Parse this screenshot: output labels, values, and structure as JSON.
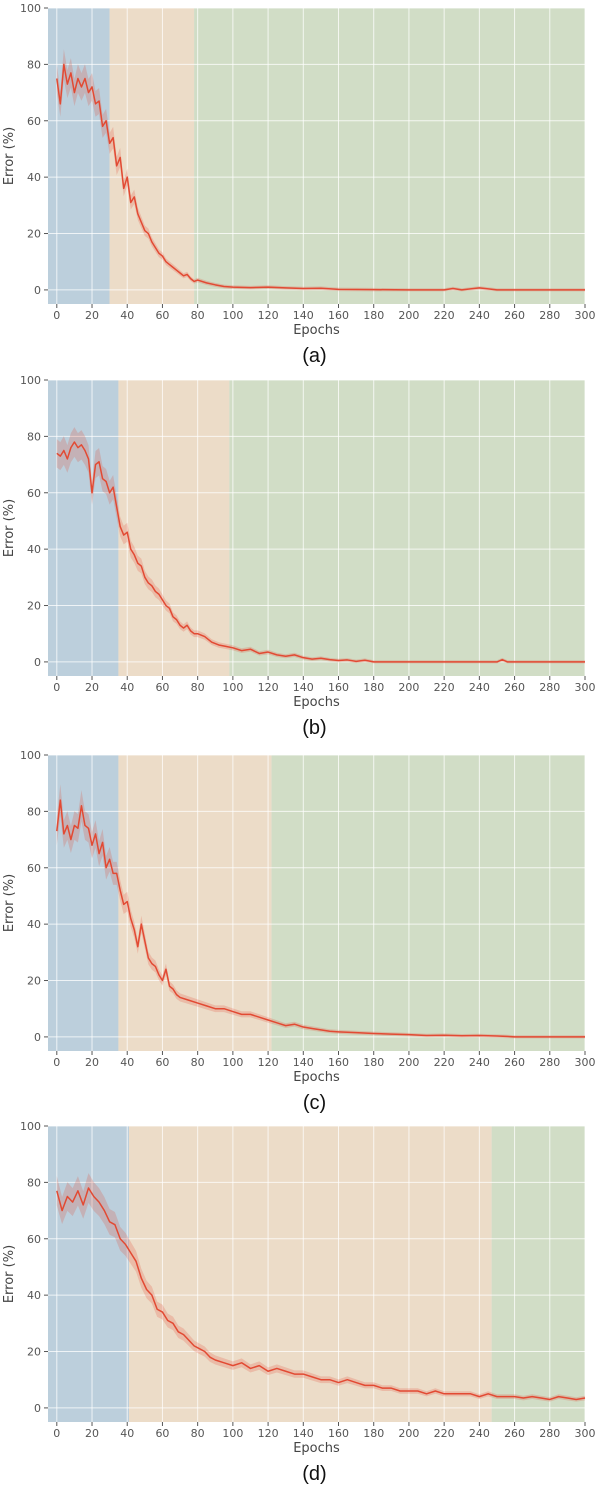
{
  "chart_data": [
    {
      "type": "line",
      "caption": "(a)",
      "xlabel": "Epochs",
      "ylabel": "Error (%)",
      "xlim": [
        -5,
        300
      ],
      "ylim": [
        -5,
        100
      ],
      "xticks": [
        "0",
        "20",
        "40",
        "60",
        "80",
        "100",
        "120",
        "140",
        "160",
        "180",
        "200",
        "220",
        "240",
        "260",
        "280",
        "300"
      ],
      "yticks": [
        "0",
        "20",
        "40",
        "60",
        "80",
        "100"
      ],
      "grid": true,
      "regions": [
        {
          "start": -5,
          "end": 30,
          "color": "#bccfdc"
        },
        {
          "start": 30,
          "end": 78,
          "color": "#ecdcc8"
        },
        {
          "start": 78,
          "end": 300,
          "color": "#d1ddc6"
        }
      ],
      "series": [
        {
          "color": "#e24a33",
          "x": [
            0,
            2,
            4,
            6,
            8,
            10,
            12,
            14,
            16,
            18,
            20,
            22,
            24,
            26,
            28,
            30,
            32,
            34,
            36,
            38,
            40,
            42,
            44,
            46,
            48,
            50,
            52,
            54,
            56,
            58,
            60,
            62,
            64,
            66,
            68,
            70,
            72,
            74,
            76,
            78,
            80,
            85,
            90,
            95,
            100,
            110,
            120,
            130,
            140,
            150,
            160,
            180,
            200,
            220,
            225,
            230,
            240,
            250,
            260,
            280,
            300
          ],
          "y": [
            75,
            66,
            80,
            73,
            77,
            70,
            75,
            72,
            75,
            70,
            72,
            66,
            67,
            58,
            60,
            52,
            54,
            44,
            47,
            36,
            40,
            31,
            33,
            27,
            24,
            21,
            20,
            17,
            15,
            13,
            12,
            10,
            9,
            8,
            7,
            6,
            5,
            5.5,
            4,
            3,
            3.5,
            2.5,
            1.8,
            1.2,
            1,
            0.8,
            1,
            0.7,
            0.5,
            0.6,
            0.2,
            0.1,
            0,
            0,
            0.5,
            0,
            0.7,
            0,
            0,
            0,
            0
          ]
        }
      ]
    },
    {
      "type": "line",
      "caption": "(b)",
      "xlabel": "Epochs",
      "ylabel": "Error (%)",
      "xlim": [
        -5,
        300
      ],
      "ylim": [
        -5,
        100
      ],
      "xticks": [
        "0",
        "20",
        "40",
        "60",
        "80",
        "100",
        "120",
        "140",
        "160",
        "180",
        "200",
        "220",
        "240",
        "260",
        "280",
        "300"
      ],
      "yticks": [
        "0",
        "20",
        "40",
        "60",
        "80",
        "100"
      ],
      "grid": true,
      "regions": [
        {
          "start": -5,
          "end": 35,
          "color": "#bccfdc"
        },
        {
          "start": 35,
          "end": 98,
          "color": "#ecdcc8"
        },
        {
          "start": 98,
          "end": 300,
          "color": "#d1ddc6"
        }
      ],
      "series": [
        {
          "color": "#e24a33",
          "x": [
            0,
            2,
            4,
            6,
            8,
            10,
            12,
            14,
            16,
            18,
            20,
            22,
            24,
            26,
            28,
            30,
            32,
            34,
            36,
            38,
            40,
            42,
            44,
            46,
            48,
            50,
            52,
            54,
            56,
            58,
            60,
            62,
            64,
            66,
            68,
            70,
            72,
            74,
            76,
            78,
            80,
            84,
            88,
            92,
            96,
            100,
            105,
            110,
            115,
            120,
            125,
            130,
            135,
            140,
            145,
            150,
            155,
            160,
            165,
            170,
            175,
            180,
            200,
            250,
            253,
            256,
            280,
            300
          ],
          "y": [
            74,
            73,
            75,
            72,
            76,
            78,
            76,
            77,
            75,
            72,
            60,
            70,
            71,
            65,
            64,
            60,
            62,
            55,
            48,
            45,
            46,
            40,
            38,
            35,
            34,
            30,
            28,
            27,
            25,
            24,
            22,
            20,
            19,
            16,
            15,
            13,
            12,
            13,
            11,
            10,
            10,
            9,
            7,
            6,
            5.5,
            5,
            4,
            4.5,
            3,
            3.5,
            2.5,
            2,
            2.5,
            1.5,
            1,
            1.3,
            0.8,
            0.5,
            0.7,
            0.2,
            0.6,
            0,
            0,
            0,
            0.8,
            0,
            0,
            0
          ]
        }
      ]
    },
    {
      "type": "line",
      "caption": "(c)",
      "xlabel": "Epochs",
      "ylabel": "Error (%)",
      "xlim": [
        -5,
        300
      ],
      "ylim": [
        -5,
        100
      ],
      "xticks": [
        "0",
        "20",
        "40",
        "60",
        "80",
        "100",
        "120",
        "140",
        "160",
        "180",
        "200",
        "220",
        "240",
        "260",
        "280",
        "300"
      ],
      "yticks": [
        "0",
        "20",
        "40",
        "60",
        "80",
        "100"
      ],
      "grid": true,
      "regions": [
        {
          "start": -5,
          "end": 35,
          "color": "#bccfdc"
        },
        {
          "start": 35,
          "end": 122,
          "color": "#ecdcc8"
        },
        {
          "start": 122,
          "end": 300,
          "color": "#d1ddc6"
        }
      ],
      "series": [
        {
          "color": "#e24a33",
          "x": [
            0,
            2,
            4,
            6,
            8,
            10,
            12,
            14,
            16,
            18,
            20,
            22,
            24,
            26,
            28,
            30,
            32,
            34,
            36,
            38,
            40,
            42,
            44,
            46,
            48,
            50,
            52,
            54,
            56,
            58,
            60,
            62,
            64,
            66,
            68,
            70,
            75,
            80,
            85,
            90,
            95,
            100,
            105,
            110,
            115,
            120,
            125,
            130,
            135,
            140,
            145,
            150,
            155,
            160,
            170,
            180,
            190,
            200,
            210,
            220,
            230,
            240,
            250,
            255,
            260,
            280,
            300
          ],
          "y": [
            73,
            84,
            72,
            75,
            70,
            75,
            74,
            82,
            75,
            74,
            68,
            72,
            65,
            69,
            60,
            63,
            58,
            58,
            52,
            47,
            48,
            42,
            38,
            32,
            40,
            34,
            28,
            26,
            25,
            22,
            20,
            24,
            18,
            17,
            15,
            14,
            13,
            12,
            11,
            10,
            10,
            9,
            8,
            8,
            7,
            6,
            5,
            4,
            4.5,
            3.5,
            3,
            2.5,
            2,
            1.8,
            1.5,
            1.2,
            1,
            0.8,
            0.5,
            0.6,
            0.4,
            0.5,
            0.3,
            0.2,
            0,
            0,
            0
          ]
        }
      ]
    },
    {
      "type": "line",
      "caption": "(d)",
      "xlabel": "Epochs",
      "ylabel": "Error (%)",
      "xlim": [
        -5,
        300
      ],
      "ylim": [
        -5,
        100
      ],
      "xticks": [
        "0",
        "20",
        "40",
        "60",
        "80",
        "100",
        "120",
        "140",
        "160",
        "180",
        "200",
        "220",
        "240",
        "260",
        "280",
        "300"
      ],
      "yticks": [
        "0",
        "20",
        "40",
        "60",
        "80",
        "100"
      ],
      "grid": true,
      "regions": [
        {
          "start": -5,
          "end": 41,
          "color": "#bccfdc"
        },
        {
          "start": 41,
          "end": 247,
          "color": "#ecdcc8"
        },
        {
          "start": 247,
          "end": 300,
          "color": "#d1ddc6"
        }
      ],
      "series": [
        {
          "color": "#e24a33",
          "x": [
            0,
            3,
            6,
            9,
            12,
            15,
            18,
            21,
            24,
            27,
            30,
            33,
            36,
            39,
            42,
            45,
            48,
            51,
            54,
            57,
            60,
            63,
            66,
            69,
            72,
            75,
            78,
            81,
            84,
            87,
            90,
            95,
            100,
            105,
            110,
            115,
            120,
            125,
            130,
            135,
            140,
            145,
            150,
            155,
            160,
            165,
            170,
            175,
            180,
            185,
            190,
            195,
            200,
            205,
            210,
            215,
            220,
            225,
            230,
            235,
            240,
            245,
            250,
            255,
            260,
            265,
            270,
            275,
            280,
            285,
            290,
            295,
            300
          ],
          "y": [
            77,
            70,
            75,
            73,
            77,
            72,
            78,
            75,
            73,
            70,
            66,
            65,
            60,
            58,
            55,
            52,
            46,
            42,
            40,
            35,
            34,
            31,
            30,
            27,
            26,
            24,
            22,
            21,
            20,
            18,
            17,
            16,
            15,
            16,
            14,
            15,
            13,
            14,
            13,
            12,
            12,
            11,
            10,
            10,
            9,
            10,
            9,
            8,
            8,
            7,
            7,
            6,
            6,
            6,
            5,
            6,
            5,
            5,
            5,
            5,
            4,
            5,
            4,
            4,
            4,
            3.5,
            4,
            3.5,
            3,
            4,
            3.5,
            3,
            3.5
          ]
        }
      ]
    }
  ]
}
